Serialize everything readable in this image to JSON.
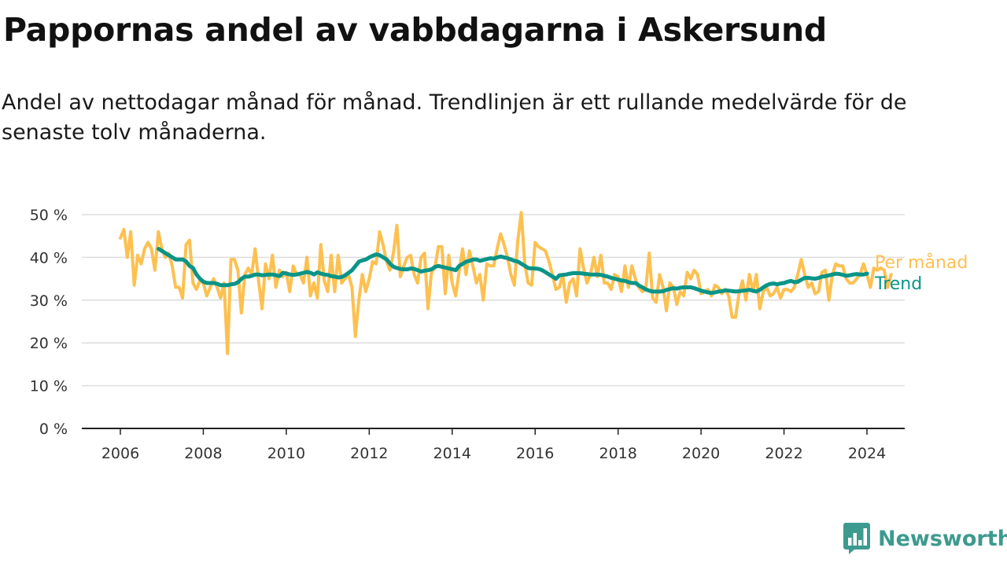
{
  "header": {
    "title": "Pappornas andel av vabbdagarna i Askersund",
    "subtitle": "Andel av nettodagar månad för månad. Trendlinjen är ett rullande medelvärde för de senaste tolv månaderna."
  },
  "brand": {
    "name": "Newsworthy",
    "icon": "newsworthy-logo-icon",
    "color": "#3d9a8f"
  },
  "colors": {
    "monthly": "#fdc050",
    "trend": "#0a9488",
    "grid": "#dddddd",
    "axis": "#222222"
  },
  "chart_data": {
    "type": "line",
    "xlim": [
      2006,
      2024.42
    ],
    "ylim": [
      0,
      50
    ],
    "y_ticks": [
      0,
      10,
      20,
      30,
      40,
      50
    ],
    "y_tick_labels": [
      "0 %",
      "10 %",
      "20 %",
      "30 %",
      "40 %",
      "50 %"
    ],
    "x_ticks": [
      2006,
      2008,
      2010,
      2012,
      2014,
      2016,
      2018,
      2020,
      2022,
      2024
    ],
    "x_tick_labels": [
      "2006",
      "2008",
      "2010",
      "2012",
      "2014",
      "2016",
      "2018",
      "2020",
      "2022",
      "2024"
    ],
    "grid": "horizontal",
    "legend": "right-end labels",
    "series": [
      {
        "name": "Per månad",
        "color": "#fdc050",
        "x_start": 2006.0,
        "step": 0.08333,
        "values": [
          44.5,
          46.5,
          40,
          46,
          33.5,
          40.5,
          38.5,
          42,
          43.5,
          42,
          37,
          46,
          42,
          40,
          41,
          38,
          33,
          33,
          30.5,
          43,
          44,
          34,
          32.5,
          34.5,
          34,
          31,
          33,
          35,
          33,
          30.5,
          34,
          17.5,
          39.5,
          39.5,
          37,
          27,
          36,
          37.5,
          36,
          42,
          34.5,
          28,
          38.5,
          35,
          40.5,
          33,
          37,
          35.5,
          36.5,
          32,
          38,
          36,
          36,
          34,
          40,
          31,
          34,
          30.5,
          43,
          34.5,
          32,
          40.5,
          32,
          40.5,
          34,
          35,
          36,
          33,
          21.5,
          30,
          36,
          32,
          35,
          39,
          38.5,
          46,
          43,
          39,
          37,
          41,
          47.5,
          35.5,
          38,
          40,
          40.5,
          36,
          34,
          40,
          41,
          28,
          36.5,
          37.5,
          42.5,
          42.5,
          31.5,
          40.5,
          34,
          31,
          36.5,
          42,
          36,
          41.5,
          38,
          34,
          36,
          30,
          38.5,
          38,
          38,
          42,
          45.5,
          43,
          40,
          36,
          33.5,
          44,
          50.5,
          38.5,
          34,
          33.5,
          43.5,
          42.5,
          42,
          41.5,
          39,
          36,
          32.5,
          33,
          36,
          29.5,
          34,
          35,
          31,
          42,
          37.5,
          34,
          36,
          40,
          35.5,
          40.5,
          34,
          34,
          32.5,
          36,
          35.5,
          32,
          38,
          33,
          38,
          35,
          33,
          32,
          32.5,
          41,
          30.5,
          29.5,
          36,
          33,
          27.5,
          34,
          33,
          29,
          32,
          31,
          36.5,
          35,
          37,
          36,
          31.5,
          32,
          32.5,
          31,
          33.5,
          33,
          31.5,
          32.5,
          31,
          26,
          26,
          31.5,
          34.5,
          30,
          36,
          32,
          36,
          28,
          32,
          33,
          31,
          31.5,
          33,
          30.5,
          32.5,
          32.5,
          32,
          33,
          36,
          39.5,
          36,
          33,
          34,
          31.5,
          32,
          36.5,
          37,
          30,
          36,
          38.5,
          38,
          38,
          35,
          34,
          34,
          35,
          36,
          38.5,
          36,
          33,
          37.5,
          37,
          37.5,
          37,
          33,
          36
        ]
      },
      {
        "name": "Trend",
        "color": "#0a9488",
        "x_start": 2006.92,
        "step": 0.08333,
        "values": [
          42,
          41.5,
          41,
          40.5,
          40,
          39.5,
          39.5,
          39.5,
          39,
          38,
          37.5,
          36,
          35,
          34.3,
          34,
          34,
          34,
          33.8,
          33.5,
          33.5,
          33.5,
          33.7,
          33.8,
          34.2,
          35,
          35.5,
          35.5,
          35.7,
          36,
          36,
          35.8,
          35.9,
          36,
          36,
          35.8,
          35.6,
          36.4,
          36.2,
          36,
          35.9,
          36,
          36.2,
          36.4,
          36.6,
          36.4,
          36,
          36.5,
          36.2,
          36,
          35.9,
          35.6,
          35.5,
          35.3,
          35.4,
          35.8,
          36.4,
          37,
          38,
          39,
          39.3,
          39.5,
          40,
          40.4,
          40.7,
          40.5,
          40,
          39.5,
          38.5,
          37.8,
          37.5,
          37.3,
          37.2,
          37.2,
          37.4,
          37.3,
          37,
          36.7,
          36.9,
          37,
          37.2,
          37.8,
          38,
          37.8,
          37.6,
          37.4,
          37.2,
          37,
          38,
          38.5,
          39,
          39.2,
          39.5,
          39.5,
          39.2,
          39.4,
          39.6,
          39.8,
          39.7,
          40,
          40.2,
          40,
          39.8,
          39.5,
          39.2,
          39,
          38.5,
          38,
          37.5,
          37.4,
          37.4,
          37.3,
          37,
          36.5,
          36,
          35.5,
          35,
          35.8,
          35.9,
          36,
          36.2,
          36.3,
          36.3,
          36.3,
          36.2,
          36.1,
          36,
          36,
          36,
          35.9,
          35.7,
          35.5,
          35.2,
          35,
          34.8,
          34.6,
          34.5,
          34.2,
          34,
          34,
          33.4,
          33,
          32.5,
          32.2,
          32,
          32,
          32,
          32.1,
          32.4,
          32.6,
          32.8,
          32.7,
          32.9,
          33,
          33,
          33,
          32.8,
          32.5,
          32.2,
          32,
          31.8,
          31.7,
          31.8,
          32,
          32.1,
          32.3,
          32.2,
          32.1,
          32,
          32.1,
          32.2,
          32.3,
          32.4,
          32.2,
          32,
          32.4,
          33,
          33.5,
          33.8,
          33.9,
          33.7,
          33.9,
          34,
          34.3,
          34.5,
          34.2,
          34.3,
          34.8,
          35.2,
          35.2,
          35.1,
          35,
          35.2,
          35.5,
          35.6,
          35.8,
          36,
          36.2,
          36.1,
          35.9,
          35.7,
          35.8,
          36,
          36.1,
          36,
          36,
          36.2
        ]
      }
    ]
  }
}
